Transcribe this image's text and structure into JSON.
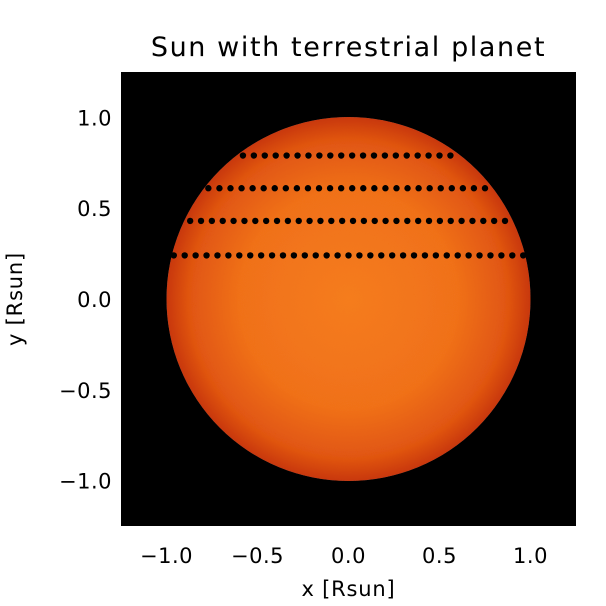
{
  "chart_data": {
    "type": "scatter",
    "title": "Sun with terrestrial planet",
    "xlabel": "x [Rsun]",
    "ylabel": "y [Rsun]",
    "xlim": [
      -1.25,
      1.25
    ],
    "ylim": [
      -1.25,
      1.25
    ],
    "x_ticks": [
      -1.0,
      -0.5,
      0.0,
      0.5,
      1.0
    ],
    "x_tick_labels": [
      "−1.0",
      "−0.5",
      "0.0",
      "0.5",
      "1.0"
    ],
    "y_ticks": [
      -1.0,
      -0.5,
      0.0,
      0.5,
      1.0
    ],
    "y_tick_labels": [
      "−1.0",
      "−0.5",
      "0.0",
      "0.5",
      "1.0"
    ],
    "grid": false,
    "background_color": "#000000",
    "sun": {
      "center": [
        0.0,
        0.0
      ],
      "radius": 1.0,
      "color_center": "#f57e1e",
      "color_limb": "#c8380b"
    },
    "planet_color": "#000000",
    "transit_rows": [
      {
        "y": 0.79,
        "x_start": -0.58,
        "x_end": 0.56,
        "count": 20
      },
      {
        "y": 0.61,
        "x_start": -0.77,
        "x_end": 0.75,
        "count": 26
      },
      {
        "y": 0.43,
        "x_start": -0.87,
        "x_end": 0.86,
        "count": 30
      },
      {
        "y": 0.24,
        "x_start": -0.96,
        "x_end": 0.96,
        "count": 33
      }
    ]
  }
}
